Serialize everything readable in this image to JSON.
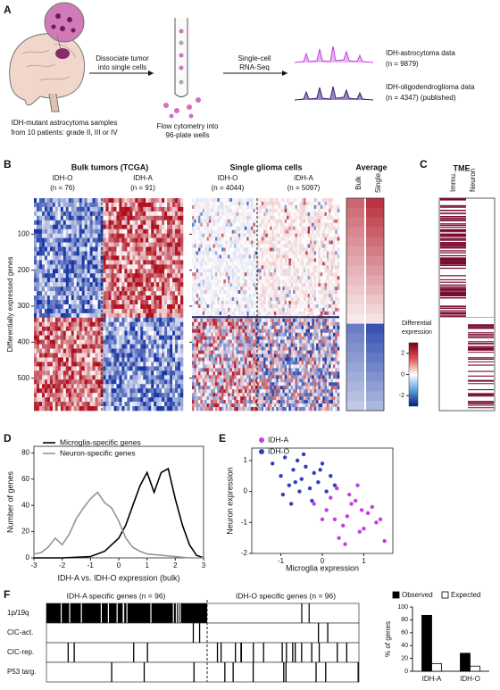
{
  "panel_labels": [
    "A",
    "B",
    "C",
    "D",
    "E",
    "F"
  ],
  "panel_a": {
    "samples": [
      "IDH-mutant astrocytoma samples",
      "from 10 patients: grade II, III or IV"
    ],
    "step1": [
      "Dissociate tumor",
      "into single cells"
    ],
    "step2": [
      "Flow cytometry into",
      "96-plate wells"
    ],
    "step3": [
      "Single-cell",
      "RNA-Seq"
    ],
    "data1": [
      "IDH-astrocytoma data",
      "(n = 9879)"
    ],
    "data2": [
      "IDH-oligodendroglioma data",
      "(n = 4347) (published)"
    ]
  },
  "panel_b": {
    "bulk_title": "Bulk tumors (TCGA)",
    "bulk_groups": [
      {
        "name": "IDH-O",
        "n": "(n = 76)"
      },
      {
        "name": "IDH-A",
        "n": "(n = 91)"
      }
    ],
    "single_title": "Single glioma cells",
    "single_groups": [
      {
        "name": "IDH-O",
        "n": "(n = 4044)"
      },
      {
        "name": "IDH-A",
        "n": "(n = 5097)"
      }
    ],
    "average_title": "Average",
    "average_columns": [
      "Bulk",
      "Single"
    ],
    "ylabel": "Differentially expressed genes",
    "ylim": [
      0,
      590
    ],
    "yticks": [
      100,
      200,
      300,
      400,
      500
    ],
    "colorbar": {
      "title": [
        "Differential",
        "expression"
      ],
      "lim": [
        -3,
        3
      ],
      "ticks": [
        2,
        0,
        -2
      ]
    }
  },
  "panel_c": {
    "title": "TME",
    "columns": [
      "Immu.",
      "Neuron"
    ]
  },
  "panel_f": {
    "titles": [
      "IDH-A specific genes (n = 96)",
      "IDH-O specific genes (n = 96)"
    ],
    "rows": [
      "1p/19q",
      "CIC-act.",
      "CIC-rep.",
      "P53 targ."
    ]
  },
  "chart_data": [
    {
      "type": "line",
      "xlabel": "IDH-A vs. IDH-O expression (bulk)",
      "ylabel": "Number of genes",
      "xlim": [
        -3,
        3
      ],
      "xticks": [
        -3,
        -2,
        -1,
        0,
        1,
        2,
        3
      ],
      "ylim": [
        0,
        85
      ],
      "yticks": [
        0,
        20,
        40,
        60,
        80
      ],
      "series": [
        {
          "name": "Microglia-specific genes",
          "color": "#000000",
          "x": [
            -3,
            -2,
            -1,
            -0.5,
            0,
            0.25,
            0.5,
            0.75,
            1,
            1.25,
            1.5,
            1.75,
            2,
            2.25,
            2.5,
            2.75,
            3
          ],
          "values": [
            0,
            0,
            1,
            5,
            15,
            25,
            40,
            55,
            65,
            50,
            65,
            68,
            45,
            25,
            10,
            2,
            0
          ]
        },
        {
          "name": "Neuron-specific genes",
          "color": "#8a9a90",
          "x": [
            -3,
            -2.75,
            -2.5,
            -2.25,
            -2,
            -1.75,
            -1.5,
            -1.25,
            -1,
            -0.75,
            -0.5,
            -0.25,
            0,
            0.25,
            0.5,
            0.75,
            1,
            1.5,
            2,
            2.5,
            3
          ],
          "values": [
            3,
            4,
            8,
            15,
            10,
            18,
            30,
            38,
            45,
            50,
            42,
            38,
            28,
            15,
            8,
            5,
            3,
            2,
            1,
            0,
            0
          ]
        }
      ]
    },
    {
      "type": "scatter",
      "xlabel": "Microglia expression",
      "ylabel": "Neuron expression",
      "xlim": [
        -1.7,
        1.7
      ],
      "xticks": [
        -1,
        0,
        1
      ],
      "ylim": [
        -2,
        1.4
      ],
      "yticks": [
        -2,
        -1,
        0,
        1
      ],
      "series": [
        {
          "name": "IDH-A",
          "color": "#c040e0",
          "x": [
            0.1,
            0.3,
            0.5,
            0.7,
            0.9,
            1.1,
            1.3,
            0.2,
            0.4,
            0.6,
            0.8,
            1.0,
            1.2,
            1.5,
            0.0,
            0.35,
            0.65,
            0.95,
            -0.2,
            1.4,
            0.55,
            0.85
          ],
          "values": [
            -0.6,
            -0.9,
            -1.1,
            -0.4,
            -1.3,
            -0.7,
            -1.0,
            -0.2,
            -1.5,
            -0.8,
            -0.3,
            -1.2,
            -0.5,
            -1.6,
            -0.9,
            0.1,
            -0.1,
            -0.6,
            -0.4,
            -0.9,
            -1.7,
            0.2
          ]
        },
        {
          "name": "IDH-O",
          "color": "#3040c0",
          "x": [
            -1.2,
            -1.0,
            -0.9,
            -0.8,
            -0.7,
            -0.6,
            -0.5,
            -0.4,
            -0.3,
            -0.2,
            -0.1,
            0.0,
            0.1,
            0.2,
            -0.95,
            -0.65,
            -0.45,
            -0.25,
            -0.05,
            0.3,
            -0.75,
            -0.55
          ],
          "values": [
            0.9,
            0.5,
            1.1,
            0.2,
            0.7,
            1.0,
            0.4,
            0.8,
            0.1,
            0.6,
            0.3,
            0.9,
            0.0,
            0.5,
            -0.1,
            0.3,
            1.2,
            -0.3,
            0.7,
            0.2,
            -0.4,
            0.0
          ]
        }
      ]
    },
    {
      "type": "bar",
      "ylabel": "% of genes",
      "categories": [
        "IDH-A",
        "IDH-O"
      ],
      "ylim": [
        0,
        100
      ],
      "yticks": [
        0,
        20,
        40,
        60,
        80,
        100
      ],
      "series": [
        {
          "name": "Observed",
          "color": "#000000",
          "values": [
            87,
            28
          ]
        },
        {
          "name": "Expected",
          "color": "#ffffff",
          "values": [
            12,
            8
          ]
        }
      ]
    }
  ]
}
